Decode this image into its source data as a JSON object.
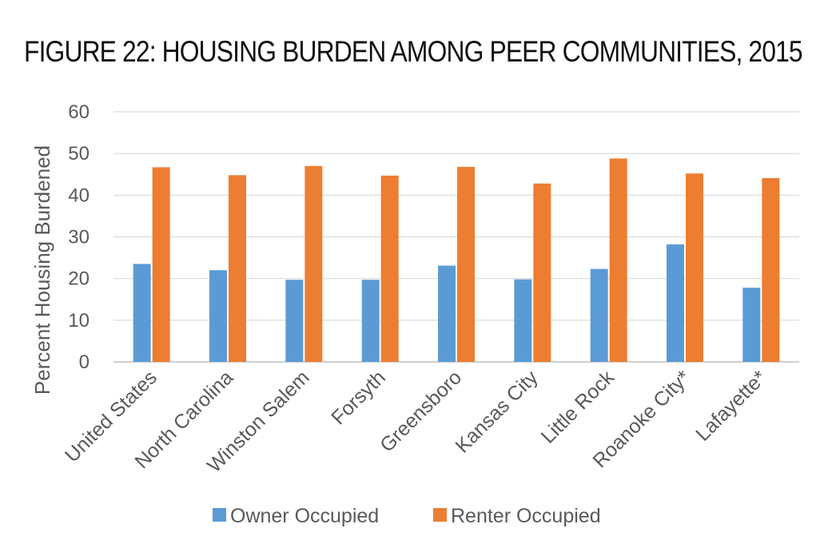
{
  "title": "FIGURE 22: HOUSING BURDEN AMONG PEER COMMUNITIES, 2015",
  "chart_data": {
    "type": "bar",
    "title": "FIGURE 22: HOUSING BURDEN AMONG PEER COMMUNITIES, 2015",
    "xlabel": "",
    "ylabel": "Percent Housing Burdened",
    "ylim": [
      0,
      60
    ],
    "yticks": [
      0,
      10,
      20,
      30,
      40,
      50,
      60
    ],
    "grid": true,
    "legend_position": "bottom",
    "categories": [
      "United States",
      "North Carolina",
      "Winston Salem",
      "Forsyth",
      "Greensboro",
      "Kansas City",
      "Little Rock",
      "Roanoke City*",
      "Lafayette*"
    ],
    "series": [
      {
        "name": "Owner Occupied",
        "color": "#5B9BD5",
        "values": [
          23.5,
          22.0,
          19.7,
          19.7,
          23.1,
          19.8,
          22.3,
          28.2,
          17.8
        ]
      },
      {
        "name": "Renter Occupied",
        "color": "#ED7D31",
        "values": [
          46.7,
          44.8,
          47.0,
          44.7,
          46.8,
          42.8,
          48.8,
          45.2,
          44.1
        ]
      }
    ]
  }
}
